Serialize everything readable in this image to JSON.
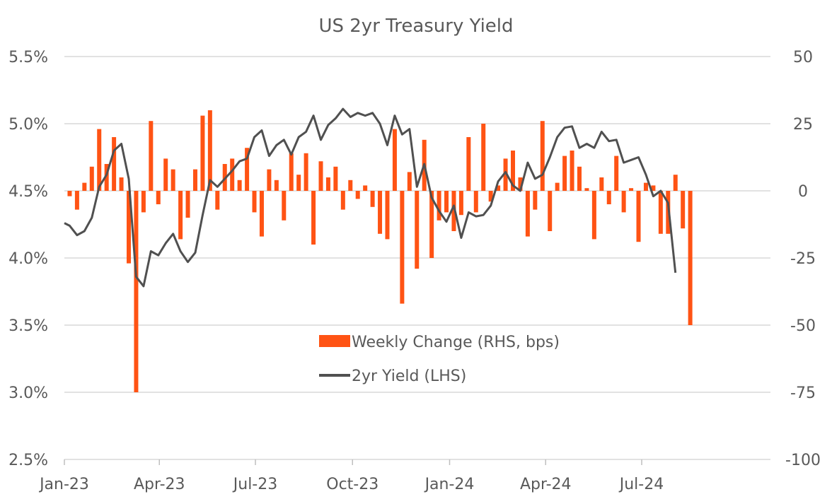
{
  "chart_data": {
    "type": "bar+line",
    "title": "US 2yr Treasury Yield",
    "colors": {
      "bars": "#FF5314",
      "line": "#505050",
      "grid": "#D9D9D9",
      "text": "#595959"
    },
    "x_axis": {
      "type": "date",
      "range": [
        "2023-01-01",
        "2024-10-31"
      ],
      "tick_labels": [
        "Jan-23",
        "Apr-23",
        "Jul-23",
        "Oct-23",
        "Jan-24",
        "Apr-24",
        "Jul-24"
      ],
      "tick_dates": [
        "2023-01-01",
        "2023-04-01",
        "2023-07-01",
        "2023-10-01",
        "2024-01-01",
        "2024-04-01",
        "2024-07-01"
      ]
    },
    "y_left": {
      "range": [
        2.5,
        5.5
      ],
      "tick_labels": [
        "2.5%",
        "3.0%",
        "3.5%",
        "4.0%",
        "4.5%",
        "5.0%",
        "5.5%"
      ],
      "tick_values": [
        2.5,
        3.0,
        3.5,
        4.0,
        4.5,
        5.0,
        5.5
      ]
    },
    "y_right": {
      "range": [
        -100,
        50
      ],
      "tick_labels": [
        "-100",
        "-75",
        "-50",
        "-25",
        "0",
        "25",
        "50"
      ],
      "tick_values": [
        -100,
        -75,
        -50,
        -25,
        0,
        25,
        50
      ]
    },
    "grid": true,
    "legend": {
      "placement": "center-bottom",
      "entries": [
        "Weekly Change (RHS, bps)",
        "2yr Yield (LHS)"
      ]
    },
    "series": [
      {
        "name": "Weekly Change (RHS, bps)",
        "axis": "right",
        "kind": "bar",
        "points": [
          [
            "2023-01-06",
            -2
          ],
          [
            "2023-01-13",
            -7
          ],
          [
            "2023-01-20",
            3
          ],
          [
            "2023-01-27",
            9
          ],
          [
            "2023-02-03",
            23
          ],
          [
            "2023-02-10",
            10
          ],
          [
            "2023-02-17",
            20
          ],
          [
            "2023-02-24",
            5
          ],
          [
            "2023-03-03",
            -27
          ],
          [
            "2023-03-10",
            -75
          ],
          [
            "2023-03-17",
            -8
          ],
          [
            "2023-03-24",
            26
          ],
          [
            "2023-03-31",
            -5
          ],
          [
            "2023-04-07",
            12
          ],
          [
            "2023-04-14",
            8
          ],
          [
            "2023-04-21",
            -18
          ],
          [
            "2023-04-28",
            -10
          ],
          [
            "2023-05-05",
            8
          ],
          [
            "2023-05-12",
            28
          ],
          [
            "2023-05-19",
            30
          ],
          [
            "2023-05-26",
            -7
          ],
          [
            "2023-06-02",
            10
          ],
          [
            "2023-06-09",
            12
          ],
          [
            "2023-06-16",
            4
          ],
          [
            "2023-06-23",
            16
          ],
          [
            "2023-06-30",
            -8
          ],
          [
            "2023-07-07",
            -17
          ],
          [
            "2023-07-14",
            8
          ],
          [
            "2023-07-21",
            4
          ],
          [
            "2023-07-28",
            -11
          ],
          [
            "2023-08-04",
            14
          ],
          [
            "2023-08-11",
            6
          ],
          [
            "2023-08-18",
            14
          ],
          [
            "2023-08-25",
            -20
          ],
          [
            "2023-09-01",
            11
          ],
          [
            "2023-09-08",
            5
          ],
          [
            "2023-09-15",
            9
          ],
          [
            "2023-09-22",
            -7
          ],
          [
            "2023-09-29",
            4
          ],
          [
            "2023-10-06",
            -3
          ],
          [
            "2023-10-13",
            2
          ],
          [
            "2023-10-20",
            -6
          ],
          [
            "2023-10-27",
            -16
          ],
          [
            "2023-11-03",
            -18
          ],
          [
            "2023-11-10",
            23
          ],
          [
            "2023-11-17",
            -42
          ],
          [
            "2023-11-24",
            7
          ],
          [
            "2023-12-01",
            -29
          ],
          [
            "2023-12-08",
            19
          ],
          [
            "2023-12-15",
            -25
          ],
          [
            "2023-12-22",
            -11
          ],
          [
            "2023-12-29",
            -8
          ],
          [
            "2024-01-05",
            -15
          ],
          [
            "2024-01-12",
            -9
          ],
          [
            "2024-01-19",
            20
          ],
          [
            "2024-01-26",
            -8
          ],
          [
            "2024-02-02",
            25
          ],
          [
            "2024-02-09",
            -4
          ],
          [
            "2024-02-16",
            2
          ],
          [
            "2024-02-23",
            12
          ],
          [
            "2024-03-01",
            15
          ],
          [
            "2024-03-08",
            5
          ],
          [
            "2024-03-15",
            -17
          ],
          [
            "2024-03-22",
            -7
          ],
          [
            "2024-03-29",
            26
          ],
          [
            "2024-04-05",
            -15
          ],
          [
            "2024-04-12",
            3
          ],
          [
            "2024-04-19",
            13
          ],
          [
            "2024-04-26",
            15
          ],
          [
            "2024-05-03",
            9
          ],
          [
            "2024-05-10",
            1
          ],
          [
            "2024-05-17",
            -18
          ],
          [
            "2024-05-24",
            5
          ],
          [
            "2024-05-31",
            -5
          ],
          [
            "2024-06-07",
            13
          ],
          [
            "2024-06-14",
            -8
          ],
          [
            "2024-06-21",
            1
          ],
          [
            "2024-06-28",
            -19
          ],
          [
            "2024-07-05",
            3
          ],
          [
            "2024-07-12",
            2
          ],
          [
            "2024-07-19",
            -16
          ],
          [
            "2024-07-26",
            -16
          ],
          [
            "2024-08-02",
            6
          ],
          [
            "2024-08-09",
            -14
          ],
          [
            "2024-08-16",
            -50
          ]
        ]
      },
      {
        "name": "2yr Yield (LHS)",
        "axis": "left",
        "kind": "line",
        "points": [
          [
            "2023-01-01",
            4.26
          ],
          [
            "2023-01-06",
            4.24
          ],
          [
            "2023-01-13",
            4.17
          ],
          [
            "2023-01-20",
            4.2
          ],
          [
            "2023-01-27",
            4.3
          ],
          [
            "2023-02-03",
            4.53
          ],
          [
            "2023-02-10",
            4.62
          ],
          [
            "2023-02-17",
            4.8
          ],
          [
            "2023-02-24",
            4.85
          ],
          [
            "2023-03-03",
            4.59
          ],
          [
            "2023-03-10",
            3.86
          ],
          [
            "2023-03-17",
            3.79
          ],
          [
            "2023-03-24",
            4.05
          ],
          [
            "2023-03-31",
            4.02
          ],
          [
            "2023-04-07",
            4.11
          ],
          [
            "2023-04-14",
            4.18
          ],
          [
            "2023-04-21",
            4.05
          ],
          [
            "2023-04-28",
            3.97
          ],
          [
            "2023-05-05",
            4.04
          ],
          [
            "2023-05-12",
            4.32
          ],
          [
            "2023-05-19",
            4.58
          ],
          [
            "2023-05-26",
            4.53
          ],
          [
            "2023-06-02",
            4.59
          ],
          [
            "2023-06-09",
            4.65
          ],
          [
            "2023-06-16",
            4.72
          ],
          [
            "2023-06-23",
            4.74
          ],
          [
            "2023-06-30",
            4.9
          ],
          [
            "2023-07-07",
            4.95
          ],
          [
            "2023-07-14",
            4.76
          ],
          [
            "2023-07-21",
            4.84
          ],
          [
            "2023-07-28",
            4.88
          ],
          [
            "2023-08-04",
            4.77
          ],
          [
            "2023-08-11",
            4.9
          ],
          [
            "2023-08-18",
            4.94
          ],
          [
            "2023-08-25",
            5.06
          ],
          [
            "2023-09-01",
            4.88
          ],
          [
            "2023-09-08",
            4.99
          ],
          [
            "2023-09-15",
            5.04
          ],
          [
            "2023-09-22",
            5.11
          ],
          [
            "2023-09-29",
            5.05
          ],
          [
            "2023-10-06",
            5.08
          ],
          [
            "2023-10-13",
            5.06
          ],
          [
            "2023-10-20",
            5.08
          ],
          [
            "2023-10-27",
            5.0
          ],
          [
            "2023-11-03",
            4.84
          ],
          [
            "2023-11-10",
            5.06
          ],
          [
            "2023-11-17",
            4.92
          ],
          [
            "2023-11-24",
            4.96
          ],
          [
            "2023-12-01",
            4.53
          ],
          [
            "2023-12-08",
            4.7
          ],
          [
            "2023-12-15",
            4.45
          ],
          [
            "2023-12-22",
            4.35
          ],
          [
            "2023-12-29",
            4.27
          ],
          [
            "2024-01-05",
            4.39
          ],
          [
            "2024-01-12",
            4.15
          ],
          [
            "2024-01-19",
            4.34
          ],
          [
            "2024-01-26",
            4.31
          ],
          [
            "2024-02-02",
            4.32
          ],
          [
            "2024-02-09",
            4.39
          ],
          [
            "2024-02-16",
            4.57
          ],
          [
            "2024-02-23",
            4.64
          ],
          [
            "2024-03-01",
            4.54
          ],
          [
            "2024-03-08",
            4.5
          ],
          [
            "2024-03-15",
            4.71
          ],
          [
            "2024-03-22",
            4.59
          ],
          [
            "2024-03-29",
            4.62
          ],
          [
            "2024-04-05",
            4.75
          ],
          [
            "2024-04-12",
            4.9
          ],
          [
            "2024-04-19",
            4.97
          ],
          [
            "2024-04-26",
            4.98
          ],
          [
            "2024-05-03",
            4.82
          ],
          [
            "2024-05-10",
            4.85
          ],
          [
            "2024-05-17",
            4.82
          ],
          [
            "2024-05-24",
            4.94
          ],
          [
            "2024-05-31",
            4.87
          ],
          [
            "2024-06-07",
            4.88
          ],
          [
            "2024-06-14",
            4.71
          ],
          [
            "2024-06-21",
            4.73
          ],
          [
            "2024-06-28",
            4.75
          ],
          [
            "2024-07-05",
            4.62
          ],
          [
            "2024-07-12",
            4.46
          ],
          [
            "2024-07-19",
            4.5
          ],
          [
            "2024-07-26",
            4.41
          ],
          [
            "2024-08-02",
            3.89
          ]
        ]
      }
    ]
  }
}
